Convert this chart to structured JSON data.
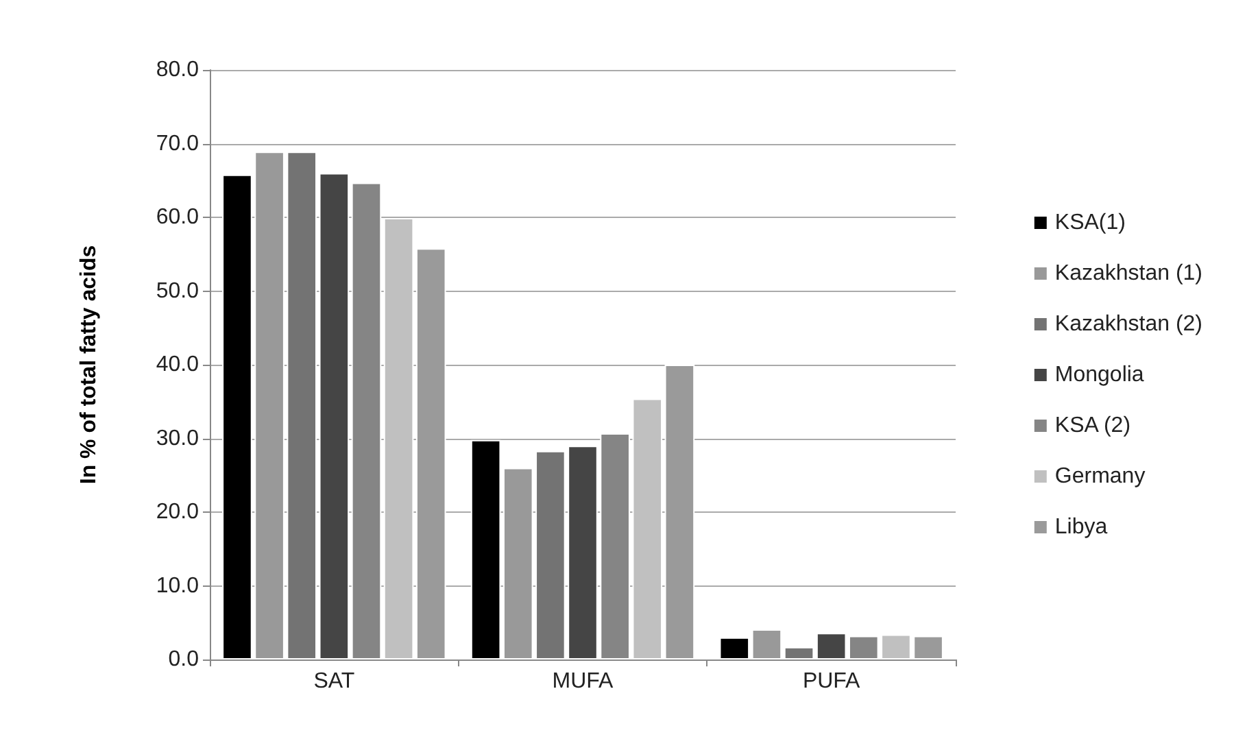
{
  "chart_data": {
    "type": "bar",
    "ylabel": "In % of total fatty acids",
    "categories": [
      "SAT",
      "MUFA",
      "PUFA"
    ],
    "series": [
      {
        "name": "KSA(1)",
        "color": "#000000",
        "values": [
          65.8,
          29.8,
          3.0
        ]
      },
      {
        "name": "Kazakhstan (1)",
        "color": "#999999",
        "values": [
          68.9,
          26.0,
          4.1
        ]
      },
      {
        "name": "Kazakhstan (2)",
        "color": "#737373",
        "values": [
          68.9,
          28.3,
          1.7
        ]
      },
      {
        "name": "Mongolia",
        "color": "#454545",
        "values": [
          66.0,
          29.0,
          3.6
        ]
      },
      {
        "name": "KSA (2)",
        "color": "#858585",
        "values": [
          64.7,
          30.7,
          3.2
        ]
      },
      {
        "name": "Germany",
        "color": "#c0c0c0",
        "values": [
          59.9,
          35.4,
          3.4
        ]
      },
      {
        "name": "Libya",
        "color": "#9a9a9a",
        "values": [
          55.8,
          40.0,
          3.2
        ]
      }
    ],
    "ylim": [
      0,
      80
    ],
    "yticks": [
      {
        "value": 0,
        "label": "0.0"
      },
      {
        "value": 10,
        "label": "10.0"
      },
      {
        "value": 20,
        "label": "20.0"
      },
      {
        "value": 30,
        "label": "30.0"
      },
      {
        "value": 40,
        "label": "40.0"
      },
      {
        "value": 50,
        "label": "50.0"
      },
      {
        "value": 60,
        "label": "60.0"
      },
      {
        "value": 70,
        "label": "70.0"
      },
      {
        "value": 80,
        "label": "80.0"
      }
    ],
    "grid": "y",
    "legend": "right"
  }
}
